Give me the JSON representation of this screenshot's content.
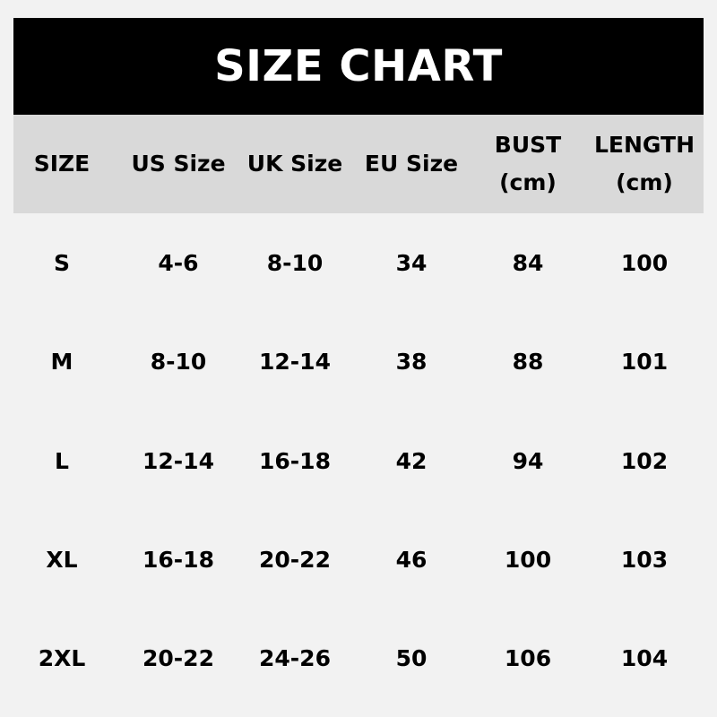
{
  "title": "SIZE CHART",
  "columns": [
    {
      "line1": "SIZE",
      "line2": ""
    },
    {
      "line1": "US Size",
      "line2": ""
    },
    {
      "line1": "UK Size",
      "line2": ""
    },
    {
      "line1": "EU Size",
      "line2": ""
    },
    {
      "line1": "BUST",
      "line2": "(cm)"
    },
    {
      "line1": "LENGTH",
      "line2": "(cm)"
    }
  ],
  "rows": [
    [
      "S",
      "4-6",
      "8-10",
      "34",
      "84",
      "100"
    ],
    [
      "M",
      "8-10",
      "12-14",
      "38",
      "88",
      "101"
    ],
    [
      "L",
      "12-14",
      "16-18",
      "42",
      "94",
      "102"
    ],
    [
      "XL",
      "16-18",
      "20-22",
      "46",
      "100",
      "103"
    ],
    [
      "2XL",
      "20-22",
      "24-26",
      "50",
      "106",
      "104"
    ]
  ],
  "colors": {
    "banner": "#000000",
    "header": "#d9d9d9",
    "background": "#f2f2f2"
  }
}
